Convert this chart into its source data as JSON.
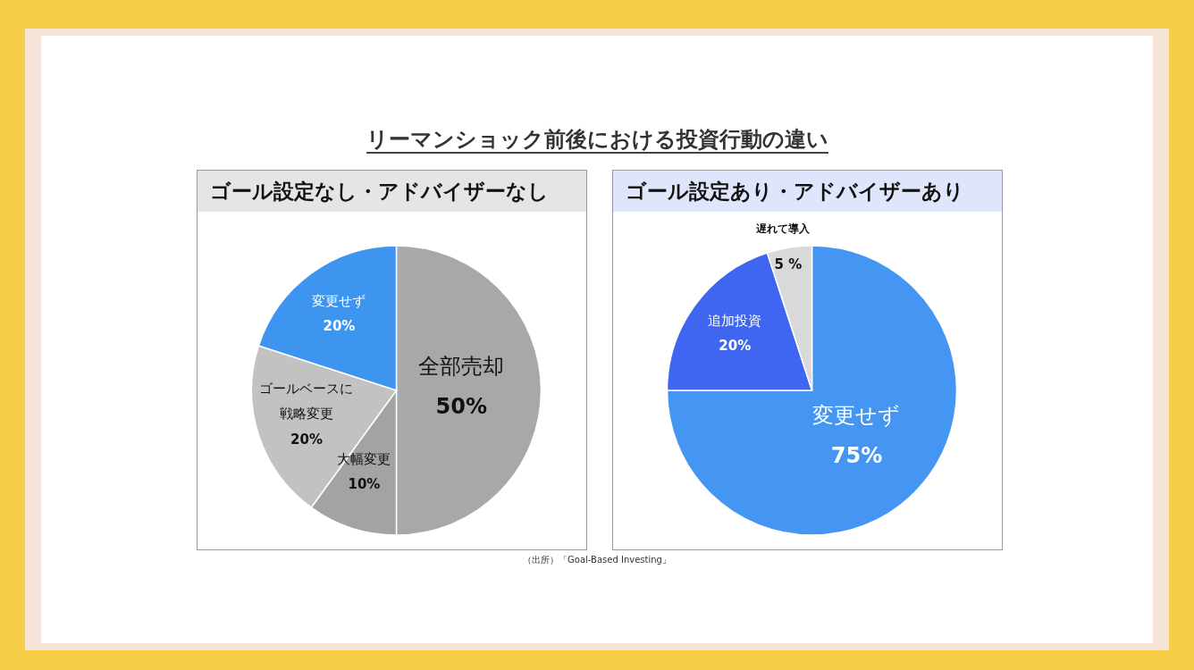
{
  "chart_data": [
    {
      "type": "pie",
      "title": "ゴール設定なし・アドバイザーなし",
      "annotations": [
        "リーマンショック前後における投資行動の違い"
      ],
      "categories": [
        "全部売却",
        "大幅変更",
        "ゴールベースに戦略変更",
        "変更せず"
      ],
      "values": [
        50,
        10,
        20,
        20
      ],
      "colors": [
        "#a8a7a9",
        "#a3a2a4",
        "#c2c2c2",
        "#3e95f0"
      ],
      "value_labels": [
        "50%",
        "10%",
        "20%",
        "20%"
      ]
    },
    {
      "type": "pie",
      "title": "ゴール設定あり・アドバイザーあり",
      "annotations": [
        "（出所）「Goal-Based Investing」"
      ],
      "categories": [
        "変更せず",
        "追加投資",
        "遅れて導入"
      ],
      "values": [
        75,
        20,
        5
      ],
      "colors": [
        "#4596f2",
        "#3e66f0",
        "#d9d9d9"
      ],
      "value_labels": [
        "75%",
        "20%",
        "5 %"
      ]
    }
  ]
}
